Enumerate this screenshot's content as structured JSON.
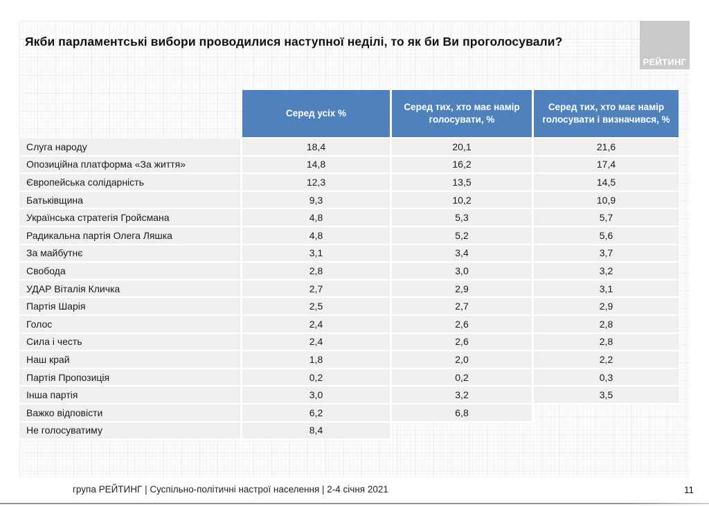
{
  "slide": {
    "title": "Якби парламентські вибори проводилися наступної неділі, то як би Ви проголосували?",
    "logo_text": "РЕЙТИНГ",
    "footer": "група РЕЙТИНГ | Суспільно-політичні настрої населення  | 2-4 січня 2021",
    "page_number": "11"
  },
  "chart_data": {
    "type": "table",
    "title": "Якби парламентські вибори проводилися наступної неділі, то як би Ви проголосували?",
    "columns": [
      "",
      "Серед усіх %",
      "Серед тих, хто має намір голосувати, %",
      "Серед тих, хто має намір голосувати і визначився, %"
    ],
    "rows": [
      {
        "label": "Слуга народу",
        "values": [
          "18,4",
          "20,1",
          "21,6"
        ]
      },
      {
        "label": "Опозиційна платформа «За життя»",
        "values": [
          "14,8",
          "16,2",
          "17,4"
        ]
      },
      {
        "label": "Європейська солідарність",
        "values": [
          "12,3",
          "13,5",
          "14,5"
        ]
      },
      {
        "label": "Батьківщина",
        "values": [
          "9,3",
          "10,2",
          "10,9"
        ]
      },
      {
        "label": "Українська стратегія Гройсмана",
        "values": [
          "4,8",
          "5,3",
          "5,7"
        ]
      },
      {
        "label": "Радикальна партія Олега Ляшка",
        "values": [
          "4,8",
          "5,2",
          "5,6"
        ]
      },
      {
        "label": "За майбутнє",
        "values": [
          "3,1",
          "3,4",
          "3,7"
        ]
      },
      {
        "label": "Свобода",
        "values": [
          "2,8",
          "3,0",
          "3,2"
        ]
      },
      {
        "label": "УДАР Віталія Кличка",
        "values": [
          "2,7",
          "2,9",
          "3,1"
        ]
      },
      {
        "label": "Партія Шарія",
        "values": [
          "2,5",
          "2,7",
          "2,9"
        ]
      },
      {
        "label": "Голос",
        "values": [
          "2,4",
          "2,6",
          "2,8"
        ]
      },
      {
        "label": "Сила і честь",
        "values": [
          "2,4",
          "2,6",
          "2,8"
        ]
      },
      {
        "label": "Наш край",
        "values": [
          "1,8",
          "2,0",
          "2,2"
        ]
      },
      {
        "label": "Партія Пропозиція",
        "values": [
          "0,2",
          "0,2",
          "0,3"
        ]
      },
      {
        "label": "Інша партія",
        "values": [
          "3,0",
          "3,2",
          "3,5"
        ]
      },
      {
        "label": "Важко відповісти",
        "values": [
          "6,2",
          "6,8",
          null
        ]
      },
      {
        "label": "Не голосуватиму",
        "values": [
          "8,4",
          null,
          null
        ]
      }
    ],
    "layout": {
      "grid": "faint graph-paper background",
      "header_rows": 1,
      "value_columns_centered": true
    }
  },
  "colors": {
    "header_bg": "#4F81BD",
    "header_text": "#FFFFFF",
    "row_bg": "#EFEFEF",
    "logo_bg": "#C9C9C9",
    "bottom_rule": "#8F8F8F"
  }
}
